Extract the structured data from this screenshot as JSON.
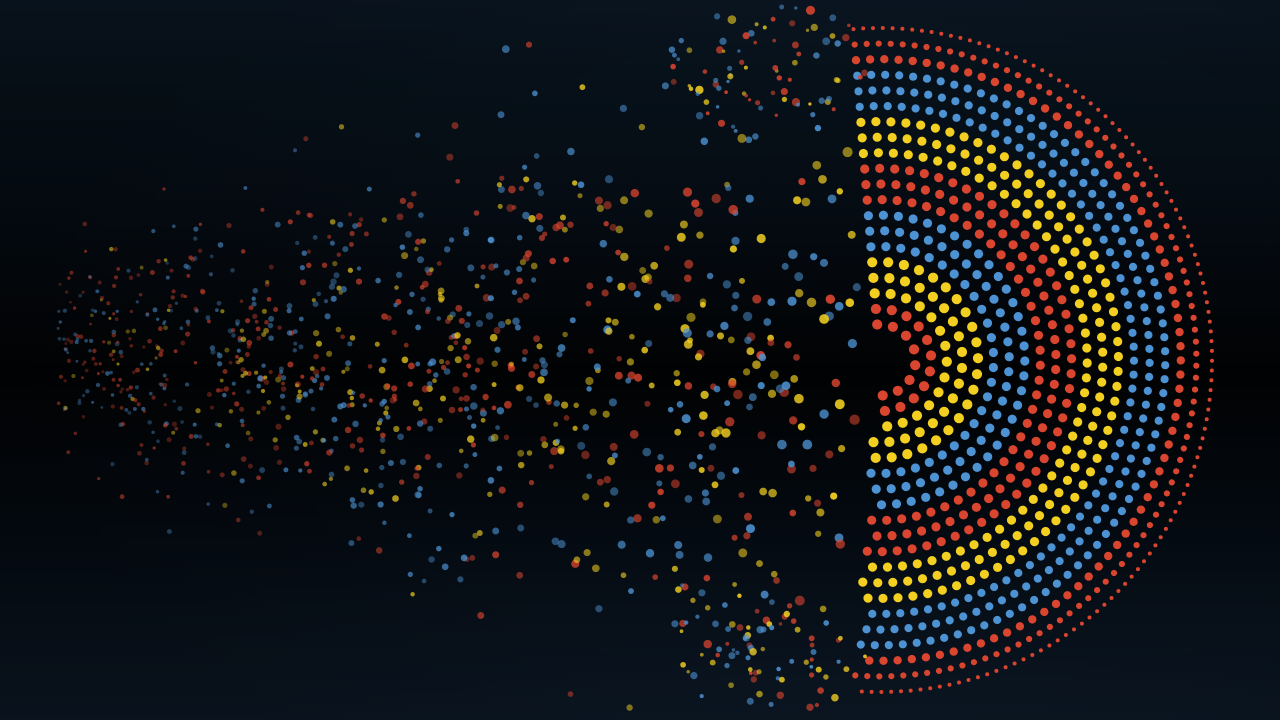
{
  "colors": {
    "background": "#03070d",
    "red": "#d9452f",
    "yellow": "#f2cf21",
    "blue": "#4d93d3"
  },
  "artwork": {
    "subject": "dotted-concentric-half-rings-dispersing-into-particles",
    "ring_color_sequence_center_to_edge": [
      "red",
      "yellow",
      "blue",
      "red",
      "yellow",
      "blue",
      "red"
    ],
    "dispersion_direction": "left"
  }
}
